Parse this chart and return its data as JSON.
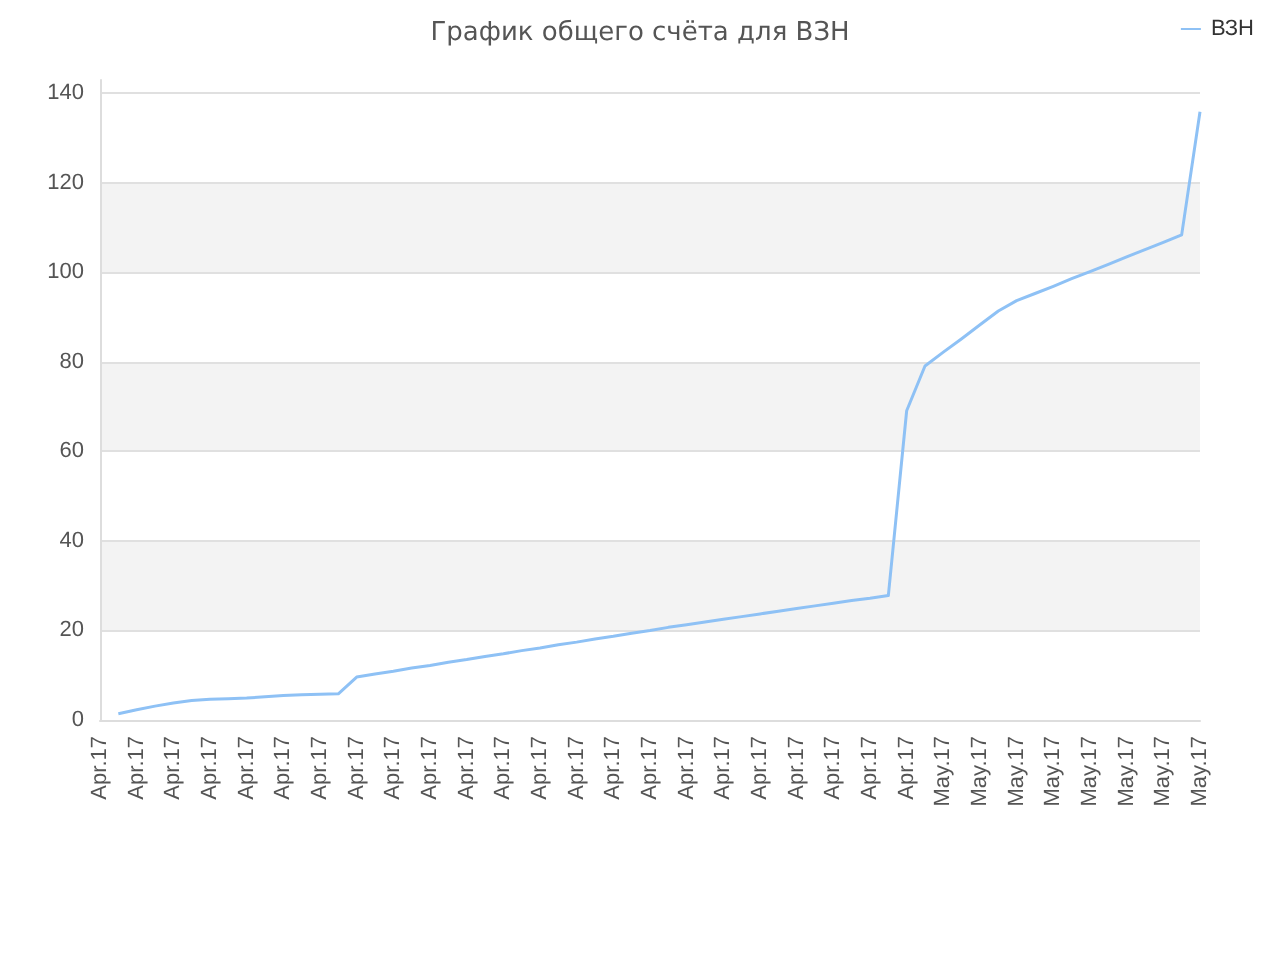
{
  "chart_data": {
    "type": "line",
    "title": "График общего счёта для ВЗН",
    "categories": [
      "Apr.17",
      null,
      "Apr.17",
      null,
      "Apr.17",
      null,
      "Apr.17",
      null,
      "Apr.17",
      null,
      "Apr.17",
      null,
      "Apr.17",
      null,
      "Apr.17",
      null,
      "Apr.17",
      null,
      "Apr.17",
      null,
      "Apr.17",
      null,
      "Apr.17",
      null,
      "Apr.17",
      null,
      "Apr.17",
      null,
      "Apr.17",
      null,
      "Apr.17",
      null,
      "Apr.17",
      null,
      "Apr.17",
      null,
      "Apr.17",
      null,
      "Apr.17",
      null,
      "Apr.17",
      null,
      "Apr.17",
      null,
      "Apr.17",
      null,
      "May.17",
      null,
      "May.17",
      null,
      "May.17",
      null,
      "May.17",
      null,
      "May.17",
      null,
      "May.17",
      null,
      "May.17",
      null,
      "May.17"
    ],
    "series": [
      {
        "name": "ВЗН",
        "color": "#8ec1f5",
        "values": [
          null,
          1.4,
          2.3,
          3.1,
          3.8,
          4.35,
          4.65,
          4.75,
          4.9,
          5.2,
          5.5,
          5.65,
          5.75,
          5.85,
          9.6,
          10.3,
          10.9,
          11.6,
          12.2,
          12.9,
          13.5,
          14.2,
          14.8,
          15.5,
          16.1,
          16.8,
          17.4,
          18.1,
          18.7,
          19.4,
          20.0,
          20.7,
          21.3,
          21.9,
          22.5,
          23.1,
          23.7,
          24.3,
          24.9,
          25.5,
          26.1,
          26.7,
          27.2,
          27.8,
          69.1,
          79.1,
          82.2,
          85.2,
          88.3,
          91.4,
          93.7,
          95.3,
          96.9,
          98.6,
          100.2,
          101.8,
          103.5,
          105.1,
          106.7,
          108.4,
          135.9
        ]
      }
    ],
    "ylim": [
      0,
      143
    ],
    "yticks": [
      0,
      20,
      40,
      60,
      80,
      100,
      120,
      140
    ],
    "grid": "y",
    "legend": "top right",
    "marker": "none",
    "line_style": "solid"
  }
}
